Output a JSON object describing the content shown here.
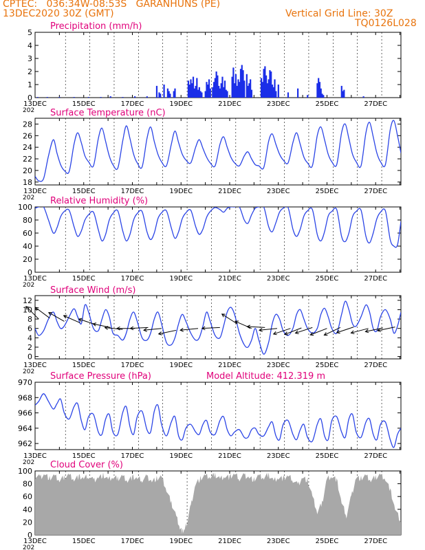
{
  "header": {
    "station": "CPTEC:   036:34W-08:53S   GARANHUNS (PE)",
    "date": "13DEC2020 30Z (GMT)",
    "grid_note": "Vertical Grid Line: 30Z",
    "code": "TQ0126L028"
  },
  "x_axis": {
    "tick_labels": [
      "13DEC",
      "15DEC",
      "17DEC",
      "19DEC",
      "21DEC",
      "23DEC",
      "25DEC",
      "27DEC"
    ],
    "year_fragment": "202",
    "range_days": [
      13.0,
      28.04
    ]
  },
  "colors": {
    "header": "#e8730c",
    "title": "#e0007a",
    "series_line": "#2a44e6",
    "precip_bar": "#1b2ee8",
    "cloud_fill": "#a8a8a8",
    "wind_arrow": "#000000"
  },
  "chart_data": [
    {
      "type": "bar",
      "title": "Precipitation (mm/h)",
      "yticks": [
        0,
        1,
        2,
        3,
        4,
        5
      ],
      "ylim": [
        0,
        5
      ],
      "grid": "vertical dashed at 30Z",
      "x_day": [
        13.1,
        13.5,
        14.0,
        14.6,
        15.2,
        15.7,
        16.1,
        16.6,
        17.1,
        17.6,
        18.0,
        18.1,
        18.15,
        18.3,
        18.45,
        18.5,
        18.55,
        18.7,
        18.75,
        19.3,
        19.35,
        19.4,
        19.45,
        19.5,
        19.55,
        19.6,
        19.65,
        19.7,
        19.75,
        19.8,
        19.85,
        20.0,
        20.05,
        20.1,
        20.15,
        20.2,
        20.3,
        20.35,
        20.4,
        20.45,
        20.5,
        20.55,
        20.6,
        20.65,
        20.7,
        20.75,
        20.8,
        20.85,
        20.9,
        21.1,
        21.15,
        21.2,
        21.25,
        21.3,
        21.35,
        21.4,
        21.45,
        21.5,
        21.55,
        21.6,
        21.7,
        21.75,
        21.8,
        21.85,
        21.9,
        22.3,
        22.35,
        22.4,
        22.45,
        22.5,
        22.55,
        22.6,
        22.65,
        22.7,
        22.75,
        22.8,
        22.85,
        22.9,
        23.0,
        23.4,
        23.8,
        24.2,
        24.6,
        24.65,
        24.7,
        24.75,
        24.8,
        24.85,
        25.6,
        25.65,
        25.7,
        26.5
      ],
      "values": [
        0.05,
        0.05,
        0.05,
        0.05,
        0.05,
        0.05,
        0.1,
        0.05,
        0.1,
        0.1,
        0.9,
        0.4,
        0.3,
        1.0,
        0.7,
        0.5,
        0.3,
        0.5,
        0.7,
        1.3,
        1.0,
        1.4,
        1.1,
        1.6,
        0.7,
        0.9,
        1.5,
        0.6,
        0.8,
        0.5,
        0.4,
        0.5,
        1.2,
        1.0,
        1.4,
        0.7,
        0.8,
        1.2,
        1.5,
        2.0,
        1.7,
        0.9,
        0.7,
        1.1,
        1.6,
        0.8,
        1.3,
        0.6,
        0.5,
        1.6,
        2.3,
        1.1,
        1.8,
        0.9,
        1.4,
        1.2,
        2.2,
        2.5,
        2.1,
        1.3,
        1.8,
        0.9,
        1.1,
        1.4,
        0.6,
        1.5,
        1.2,
        2.2,
        2.4,
        1.7,
        1.1,
        1.4,
        2.1,
        2.0,
        1.0,
        0.8,
        1.4,
        0.5,
        1.0,
        0.4,
        0.7,
        0.2,
        1.1,
        1.5,
        1.2,
        0.7,
        0.3,
        0.2,
        0.9,
        0.5,
        0.6,
        0.1
      ]
    },
    {
      "type": "line",
      "title": "Surface Temperature (nC)",
      "yticks": [
        18,
        20,
        22,
        24,
        26,
        28
      ],
      "ylim": [
        17.5,
        29
      ],
      "x_day": [
        13.0,
        13.15,
        13.35,
        13.55,
        13.75,
        13.9,
        14.05,
        14.2,
        14.4,
        14.6,
        14.75,
        14.9,
        15.05,
        15.2,
        15.4,
        15.6,
        15.75,
        15.9,
        16.05,
        16.2,
        16.4,
        16.6,
        16.75,
        16.9,
        17.05,
        17.2,
        17.4,
        17.6,
        17.75,
        17.9,
        18.05,
        18.2,
        18.4,
        18.6,
        18.75,
        18.9,
        19.05,
        19.2,
        19.4,
        19.6,
        19.75,
        19.9,
        20.05,
        20.2,
        20.4,
        20.6,
        20.75,
        20.9,
        21.05,
        21.2,
        21.4,
        21.6,
        21.75,
        21.9,
        22.05,
        22.2,
        22.4,
        22.6,
        22.75,
        22.9,
        23.05,
        23.2,
        23.4,
        23.6,
        23.75,
        23.9,
        24.05,
        24.2,
        24.4,
        24.6,
        24.75,
        24.9,
        25.05,
        25.2,
        25.4,
        25.6,
        25.75,
        25.9,
        26.05,
        26.2,
        26.4,
        26.6,
        26.75,
        26.9,
        27.05,
        27.2,
        27.4,
        27.6,
        27.75,
        27.9,
        28.04
      ],
      "values": [
        19.0,
        18.2,
        18.6,
        22.5,
        25.3,
        23.0,
        21.0,
        20.0,
        19.8,
        24.5,
        26.5,
        24.8,
        22.5,
        21.5,
        20.8,
        25.5,
        27.3,
        25.0,
        22.5,
        21.0,
        20.4,
        25.0,
        27.7,
        25.5,
        22.8,
        21.3,
        20.6,
        25.5,
        27.5,
        25.0,
        22.8,
        21.5,
        20.8,
        24.5,
        26.8,
        24.8,
        22.8,
        21.8,
        21.3,
        24.0,
        25.3,
        23.8,
        22.3,
        21.3,
        20.8,
        24.5,
        25.8,
        24.0,
        22.3,
        21.3,
        20.8,
        22.5,
        23.2,
        22.0,
        21.0,
        20.8,
        20.5,
        25.0,
        26.3,
        24.5,
        22.8,
        21.8,
        21.3,
        24.8,
        26.5,
        24.5,
        22.3,
        21.3,
        20.8,
        26.0,
        27.5,
        25.3,
        22.8,
        21.5,
        21.0,
        26.5,
        28.0,
        25.5,
        22.8,
        21.5,
        20.8,
        26.5,
        28.3,
        25.8,
        23.0,
        21.5,
        21.0,
        27.0,
        28.6,
        26.0,
        23.0
      ]
    },
    {
      "type": "line",
      "title": "Relative Humidity (%)",
      "yticks": [
        0,
        20,
        40,
        60,
        80,
        100
      ],
      "ylim": [
        0,
        100
      ],
      "x_day": [
        13.0,
        13.15,
        13.35,
        13.55,
        13.75,
        13.9,
        14.05,
        14.2,
        14.4,
        14.6,
        14.75,
        14.9,
        15.05,
        15.2,
        15.4,
        15.6,
        15.75,
        15.9,
        16.05,
        16.2,
        16.4,
        16.6,
        16.75,
        16.9,
        17.05,
        17.2,
        17.4,
        17.6,
        17.75,
        17.9,
        18.05,
        18.2,
        18.4,
        18.6,
        18.75,
        18.9,
        19.05,
        19.2,
        19.4,
        19.6,
        19.75,
        19.9,
        20.05,
        20.2,
        20.4,
        20.6,
        20.75,
        20.9,
        21.05,
        21.2,
        21.4,
        21.6,
        21.75,
        21.9,
        22.05,
        22.2,
        22.4,
        22.6,
        22.75,
        22.9,
        23.05,
        23.2,
        23.4,
        23.6,
        23.75,
        23.9,
        24.05,
        24.2,
        24.4,
        24.6,
        24.75,
        24.9,
        25.05,
        25.2,
        25.4,
        25.6,
        25.75,
        25.9,
        26.05,
        26.2,
        26.4,
        26.6,
        26.75,
        26.9,
        27.05,
        27.2,
        27.4,
        27.6,
        27.75,
        27.9,
        28.04
      ],
      "values": [
        98,
        100,
        100,
        80,
        60,
        68,
        85,
        93,
        95,
        70,
        55,
        63,
        80,
        88,
        92,
        65,
        48,
        58,
        80,
        90,
        94,
        64,
        48,
        58,
        80,
        90,
        93,
        62,
        50,
        60,
        82,
        91,
        94,
        68,
        52,
        62,
        82,
        91,
        95,
        70,
        58,
        66,
        84,
        93,
        99,
        96,
        92,
        98,
        100,
        100,
        100,
        80,
        75,
        88,
        98,
        100,
        100,
        70,
        62,
        76,
        92,
        98,
        99,
        66,
        55,
        66,
        86,
        94,
        96,
        58,
        48,
        62,
        86,
        93,
        96,
        55,
        47,
        60,
        85,
        93,
        95,
        55,
        45,
        60,
        82,
        92,
        94,
        50,
        40,
        42,
        78
      ]
    },
    {
      "type": "line",
      "title": "Surface Wind (m/s)",
      "yticks": [
        0,
        2,
        4,
        6,
        8,
        10,
        12
      ],
      "ylim": [
        -0.5,
        13
      ],
      "x_day": [
        13.0,
        13.15,
        13.35,
        13.55,
        13.75,
        13.9,
        14.05,
        14.2,
        14.4,
        14.6,
        14.75,
        14.9,
        15.05,
        15.2,
        15.4,
        15.6,
        15.75,
        15.9,
        16.05,
        16.2,
        16.4,
        16.6,
        16.75,
        16.9,
        17.05,
        17.2,
        17.4,
        17.6,
        17.75,
        17.9,
        18.05,
        18.2,
        18.4,
        18.6,
        18.75,
        18.9,
        19.05,
        19.2,
        19.4,
        19.6,
        19.75,
        19.9,
        20.05,
        20.2,
        20.4,
        20.6,
        20.75,
        20.9,
        21.05,
        21.2,
        21.4,
        21.6,
        21.75,
        21.9,
        22.05,
        22.2,
        22.4,
        22.6,
        22.75,
        22.9,
        23.05,
        23.2,
        23.4,
        23.6,
        23.75,
        23.9,
        24.05,
        24.2,
        24.4,
        24.6,
        24.75,
        24.9,
        25.05,
        25.2,
        25.4,
        25.6,
        25.75,
        25.9,
        26.05,
        26.2,
        26.4,
        26.6,
        26.75,
        26.9,
        27.05,
        27.2,
        27.4,
        27.6,
        27.75,
        27.9,
        28.04
      ],
      "values": [
        6.0,
        4.5,
        5.5,
        8.0,
        9.5,
        7.5,
        6.0,
        6.5,
        8.5,
        10.2,
        8.5,
        7.0,
        11.0,
        9.5,
        6.0,
        5.5,
        8.0,
        10.0,
        8.5,
        5.0,
        4.5,
        3.5,
        5.0,
        8.0,
        9.5,
        7.5,
        4.0,
        3.5,
        5.0,
        8.0,
        9.5,
        7.0,
        3.0,
        2.5,
        4.0,
        7.0,
        9.0,
        7.5,
        5.0,
        3.5,
        4.0,
        6.5,
        9.5,
        7.5,
        4.5,
        4.0,
        6.5,
        9.5,
        10.5,
        9.0,
        5.0,
        2.5,
        2.0,
        3.5,
        6.0,
        3.5,
        0.5,
        3.0,
        7.0,
        9.0,
        8.0,
        5.5,
        4.5,
        6.0,
        9.0,
        10.0,
        8.0,
        6.0,
        5.0,
        6.0,
        9.0,
        10.3,
        8.5,
        6.0,
        5.0,
        9.0,
        11.8,
        10.0,
        7.0,
        6.5,
        8.5,
        11.0,
        9.5,
        6.0,
        5.5,
        8.5,
        10.0,
        8.0,
        5.0,
        6.5,
        9.5
      ],
      "arrows": [
        {
          "day": 13.15,
          "speed": 8.0,
          "dx": -0.5,
          "dy": 0.5
        },
        {
          "day": 13.6,
          "speed": 8.2,
          "dx": -0.6,
          "dy": 0.45
        },
        {
          "day": 14.2,
          "speed": 7.5,
          "dx": -0.7,
          "dy": 0.4
        },
        {
          "day": 14.85,
          "speed": 7.2,
          "dx": -0.8,
          "dy": 0.35
        },
        {
          "day": 15.5,
          "speed": 6.8,
          "dx": -0.9,
          "dy": 0.3
        },
        {
          "day": 16.1,
          "speed": 6.2,
          "dx": -0.95,
          "dy": 0.2
        },
        {
          "day": 16.6,
          "speed": 5.8,
          "dx": -1.0,
          "dy": 0.1
        },
        {
          "day": 17.1,
          "speed": 6.0,
          "dx": -1.0,
          "dy": 0.0
        },
        {
          "day": 17.65,
          "speed": 6.2,
          "dx": -1.0,
          "dy": -0.05
        },
        {
          "day": 18.2,
          "speed": 6.0,
          "dx": -1.0,
          "dy": -0.1
        },
        {
          "day": 18.8,
          "speed": 5.6,
          "dx": -0.95,
          "dy": -0.2
        },
        {
          "day": 19.7,
          "speed": 6.0,
          "dx": -1.0,
          "dy": -0.1
        },
        {
          "day": 20.6,
          "speed": 6.2,
          "dx": -1.0,
          "dy": -0.05
        },
        {
          "day": 21.3,
          "speed": 7.0,
          "dx": -0.7,
          "dy": 0.45
        },
        {
          "day": 21.9,
          "speed": 6.0,
          "dx": -0.8,
          "dy": 0.35
        },
        {
          "day": 22.45,
          "speed": 6.2,
          "dx": -1.0,
          "dy": 0.05
        },
        {
          "day": 22.95,
          "speed": 6.0,
          "dx": -1.0,
          "dy": -0.1
        },
        {
          "day": 23.5,
          "speed": 6.0,
          "dx": -0.9,
          "dy": -0.3
        },
        {
          "day": 23.95,
          "speed": 6.1,
          "dx": -0.9,
          "dy": -0.35
        },
        {
          "day": 24.4,
          "speed": 6.2,
          "dx": -0.9,
          "dy": -0.3
        },
        {
          "day": 25.0,
          "speed": 6.0,
          "dx": -0.9,
          "dy": -0.35
        },
        {
          "day": 25.55,
          "speed": 6.2,
          "dx": -0.85,
          "dy": -0.4
        },
        {
          "day": 26.1,
          "speed": 6.3,
          "dx": -0.9,
          "dy": -0.3
        },
        {
          "day": 26.7,
          "speed": 6.0,
          "dx": -0.95,
          "dy": -0.25
        },
        {
          "day": 27.3,
          "speed": 6.1,
          "dx": -0.95,
          "dy": -0.2
        },
        {
          "day": 27.8,
          "speed": 6.3,
          "dx": -0.95,
          "dy": -0.2
        }
      ]
    },
    {
      "type": "line",
      "title": "Surface Pressure (hPa)",
      "annotation": "Model Altitude: 412.319  m",
      "yticks": [
        962,
        964,
        966,
        968,
        970
      ],
      "ylim": [
        961.2,
        970
      ],
      "x_day": [
        13.0,
        13.15,
        13.35,
        13.55,
        13.75,
        13.9,
        14.05,
        14.2,
        14.4,
        14.6,
        14.75,
        14.9,
        15.05,
        15.2,
        15.4,
        15.6,
        15.75,
        15.9,
        16.05,
        16.2,
        16.4,
        16.6,
        16.75,
        16.9,
        17.05,
        17.2,
        17.4,
        17.6,
        17.75,
        17.9,
        18.05,
        18.2,
        18.4,
        18.6,
        18.75,
        18.9,
        19.05,
        19.2,
        19.4,
        19.6,
        19.75,
        19.9,
        20.05,
        20.2,
        20.4,
        20.6,
        20.75,
        20.9,
        21.05,
        21.2,
        21.4,
        21.6,
        21.75,
        21.9,
        22.05,
        22.2,
        22.4,
        22.6,
        22.75,
        22.9,
        23.05,
        23.2,
        23.4,
        23.6,
        23.75,
        23.9,
        24.05,
        24.2,
        24.4,
        24.6,
        24.75,
        24.9,
        25.05,
        25.2,
        25.4,
        25.6,
        25.75,
        25.9,
        26.05,
        26.2,
        26.4,
        26.6,
        26.75,
        26.9,
        27.05,
        27.2,
        27.4,
        27.6,
        27.75,
        27.9,
        28.04
      ],
      "values": [
        967.0,
        967.5,
        968.5,
        967.5,
        966.5,
        967.2,
        967.8,
        966.0,
        965.2,
        966.8,
        967.2,
        965.0,
        963.8,
        965.5,
        965.8,
        963.5,
        963.2,
        965.2,
        965.8,
        963.5,
        963.2,
        966.0,
        966.8,
        964.2,
        963.2,
        965.5,
        966.2,
        963.8,
        963.5,
        966.2,
        967.0,
        964.5,
        963.0,
        964.8,
        965.5,
        963.0,
        962.5,
        964.0,
        964.5,
        963.5,
        963.2,
        964.5,
        965.0,
        963.5,
        963.2,
        965.0,
        965.5,
        963.8,
        963.0,
        963.5,
        963.8,
        962.8,
        962.8,
        963.8,
        964.0,
        963.2,
        963.0,
        964.2,
        964.8,
        963.0,
        962.5,
        964.5,
        965.0,
        963.2,
        962.5,
        963.8,
        964.5,
        962.8,
        962.3,
        964.5,
        965.2,
        963.0,
        962.5,
        965.0,
        965.5,
        963.5,
        962.8,
        965.2,
        965.8,
        963.5,
        962.8,
        964.8,
        965.2,
        963.2,
        962.5,
        964.5,
        964.8,
        962.5,
        961.5,
        963.2,
        964.0
      ]
    },
    {
      "type": "area",
      "title": "Cloud Cover (%)",
      "yticks": [
        0,
        20,
        40,
        60,
        80,
        100
      ],
      "ylim": [
        0,
        100
      ],
      "x_day": [
        13.0,
        13.2,
        13.4,
        13.6,
        13.8,
        14.0,
        14.2,
        14.4,
        14.6,
        14.8,
        15.0,
        15.2,
        15.4,
        15.6,
        15.8,
        16.0,
        16.2,
        16.4,
        16.6,
        16.8,
        17.0,
        17.2,
        17.4,
        17.6,
        17.8,
        18.0,
        18.2,
        18.4,
        18.6,
        18.8,
        18.95,
        19.05,
        19.15,
        19.25,
        19.4,
        19.6,
        19.8,
        20.0,
        20.2,
        20.4,
        20.6,
        20.8,
        21.0,
        21.2,
        21.4,
        21.6,
        21.8,
        22.0,
        22.2,
        22.4,
        22.6,
        22.8,
        23.0,
        23.2,
        23.4,
        23.6,
        23.8,
        24.0,
        24.2,
        24.4,
        24.6,
        24.8,
        25.0,
        25.2,
        25.4,
        25.6,
        25.8,
        26.0,
        26.2,
        26.4,
        26.6,
        26.8,
        27.0,
        27.2,
        27.4,
        27.6,
        27.8,
        28.04
      ],
      "values": [
        92,
        90,
        95,
        88,
        92,
        85,
        90,
        94,
        87,
        91,
        88,
        92,
        85,
        90,
        93,
        86,
        90,
        88,
        92,
        85,
        90,
        88,
        86,
        91,
        84,
        88,
        90,
        70,
        50,
        30,
        12,
        5,
        8,
        20,
        45,
        80,
        88,
        92,
        90,
        94,
        88,
        92,
        90,
        95,
        88,
        93,
        90,
        86,
        92,
        89,
        94,
        85,
        90,
        88,
        92,
        86,
        78,
        90,
        85,
        60,
        35,
        50,
        88,
        92,
        86,
        50,
        30,
        60,
        90,
        88,
        92,
        85,
        90,
        94,
        88,
        70,
        40,
        20
      ]
    }
  ]
}
